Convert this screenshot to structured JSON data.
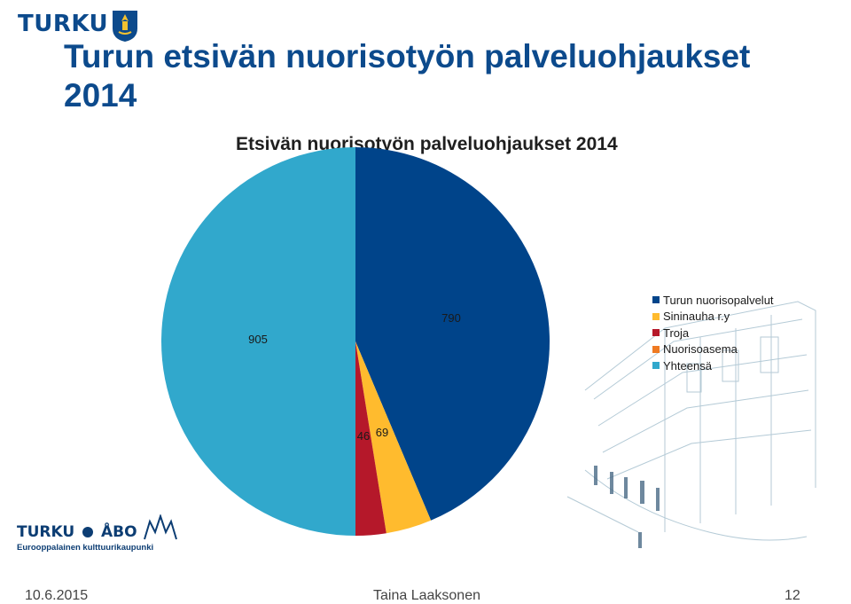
{
  "header": {
    "brand": "TURKU",
    "crest_icon": "turku-crest-icon",
    "title": "Turun etsivän nuorisotyön palveluohjaukset 2014"
  },
  "chart_data": {
    "type": "pie",
    "title": "Etsivän nuorisotyön palveluohjaukset 2014",
    "slices": [
      {
        "label": "Turun nuorisopalvelut",
        "value": 790,
        "color": "#00448a"
      },
      {
        "label": "Sininauha r.y",
        "value": 69,
        "color": "#ffbb2e"
      },
      {
        "label": "Troja",
        "value": 46,
        "color": "#b5182a"
      },
      {
        "label": "Nuorisoasema",
        "value": 0,
        "color": "#ef7a22"
      },
      {
        "label": "Yhteensä",
        "value": 905,
        "color": "#31a8cc"
      }
    ],
    "legend_position": "right",
    "data_labels": true
  },
  "footer": {
    "logo_text_left": "TURKU",
    "logo_text_right": "ÅBO",
    "logo_subtitle": "Eurooppalainen kulttuurikaupunki",
    "date": "10.6.2015",
    "author": "Taina Laaksonen",
    "page": "12"
  }
}
